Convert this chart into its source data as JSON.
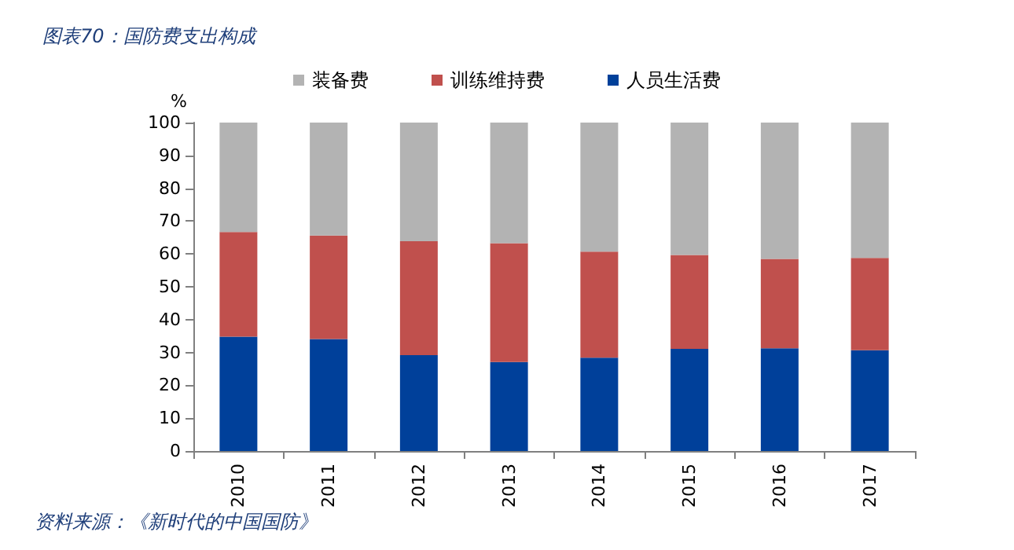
{
  "chart_data": {
    "type": "bar",
    "title": "图表70：国防费支出构成",
    "ylabel": "%",
    "categories": [
      "2010",
      "2011",
      "2012",
      "2013",
      "2014",
      "2015",
      "2016",
      "2017"
    ],
    "stacked": true,
    "series": [
      {
        "name": "人员生活费",
        "color": "#00409a",
        "values": [
          34.8,
          34.1,
          29.2,
          27.1,
          28.4,
          31.1,
          31.3,
          30.7
        ]
      },
      {
        "name": "训练维持费",
        "color": "#c0504d",
        "values": [
          31.9,
          31.5,
          34.7,
          36.2,
          32.3,
          28.6,
          27.2,
          28.1
        ]
      },
      {
        "name": "装备费",
        "color": "#b3b3b3",
        "values": [
          33.3,
          34.4,
          36.1,
          36.7,
          39.3,
          40.3,
          41.5,
          41.2
        ]
      }
    ],
    "ylim": [
      0,
      100
    ],
    "yticks": [
      0,
      10,
      20,
      30,
      40,
      50,
      60,
      70,
      80,
      90,
      100
    ],
    "grid": false,
    "legend": "top",
    "annotations": [
      "资料来源：《新时代的中国国防》"
    ]
  }
}
